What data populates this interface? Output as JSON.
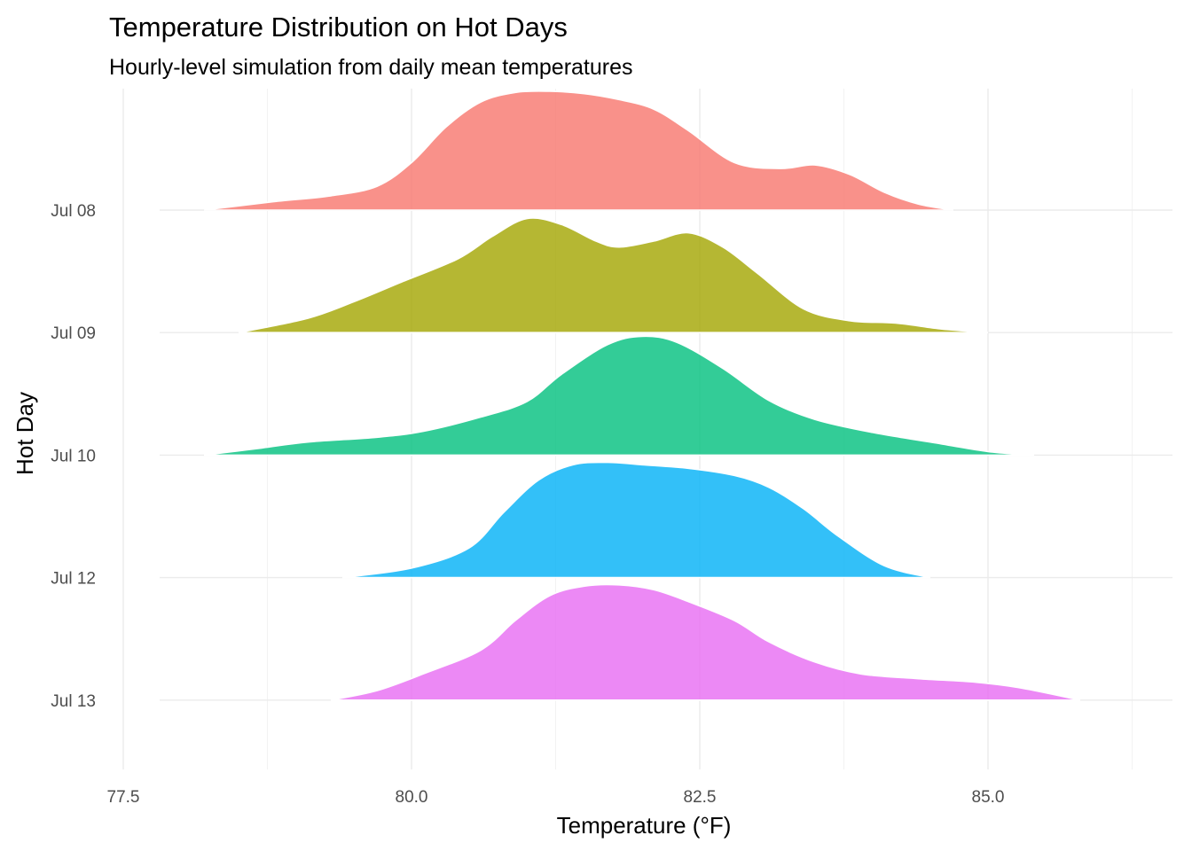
{
  "chart_data": {
    "type": "ridgeline",
    "title": "Temperature Distribution on Hot Days",
    "subtitle": "Hourly-level simulation from daily mean temperatures",
    "xlabel": "Temperature (°F)",
    "ylabel": "Hot Day",
    "xlim": [
      77.4,
      86.3
    ],
    "x_ticks": [
      77.5,
      80.0,
      82.5,
      85.0
    ],
    "x_tick_labels": [
      "77.5",
      "80.0",
      "82.5",
      "85.0"
    ],
    "grid": true,
    "legend": "none",
    "categories": [
      "Jul 08",
      "Jul 09",
      "Jul 10",
      "Jul 12",
      "Jul 13"
    ],
    "series": [
      {
        "name": "Jul 08",
        "color": "#F8766D",
        "range": [
          78.2,
          84.7
        ],
        "points": [
          [
            78.2,
            0.0
          ],
          [
            78.8,
            0.07
          ],
          [
            79.3,
            0.12
          ],
          [
            79.7,
            0.2
          ],
          [
            80.0,
            0.4
          ],
          [
            80.3,
            0.7
          ],
          [
            80.6,
            0.91
          ],
          [
            80.9,
            0.99
          ],
          [
            81.2,
            1.0
          ],
          [
            81.5,
            0.98
          ],
          [
            81.8,
            0.93
          ],
          [
            82.1,
            0.85
          ],
          [
            82.4,
            0.67
          ],
          [
            82.8,
            0.4
          ],
          [
            83.2,
            0.35
          ],
          [
            83.5,
            0.38
          ],
          [
            83.8,
            0.3
          ],
          [
            84.1,
            0.15
          ],
          [
            84.4,
            0.05
          ],
          [
            84.7,
            0.0
          ]
        ]
      },
      {
        "name": "Jul 09",
        "color": "#A3A500",
        "range": [
          78.5,
          85.0
        ],
        "points": [
          [
            78.5,
            0.0
          ],
          [
            79.1,
            0.12
          ],
          [
            79.5,
            0.26
          ],
          [
            79.9,
            0.42
          ],
          [
            80.4,
            0.62
          ],
          [
            80.7,
            0.81
          ],
          [
            81.0,
            0.96
          ],
          [
            81.3,
            0.91
          ],
          [
            81.6,
            0.77
          ],
          [
            81.8,
            0.72
          ],
          [
            82.1,
            0.77
          ],
          [
            82.4,
            0.84
          ],
          [
            82.7,
            0.72
          ],
          [
            83.0,
            0.5
          ],
          [
            83.4,
            0.2
          ],
          [
            83.8,
            0.1
          ],
          [
            84.2,
            0.08
          ],
          [
            84.6,
            0.03
          ],
          [
            85.0,
            0.0
          ]
        ]
      },
      {
        "name": "Jul 10",
        "color": "#00BF7D",
        "range": [
          78.2,
          85.4
        ],
        "points": [
          [
            78.2,
            0.0
          ],
          [
            78.7,
            0.06
          ],
          [
            79.1,
            0.11
          ],
          [
            79.7,
            0.15
          ],
          [
            80.1,
            0.2
          ],
          [
            80.6,
            0.32
          ],
          [
            81.0,
            0.45
          ],
          [
            81.3,
            0.68
          ],
          [
            81.7,
            0.93
          ],
          [
            82.0,
            1.0
          ],
          [
            82.3,
            0.95
          ],
          [
            82.7,
            0.73
          ],
          [
            83.1,
            0.46
          ],
          [
            83.5,
            0.3
          ],
          [
            84.0,
            0.19
          ],
          [
            84.5,
            0.11
          ],
          [
            85.0,
            0.03
          ],
          [
            85.4,
            0.0
          ]
        ]
      },
      {
        "name": "Jul 12",
        "color": "#00B0F6",
        "range": [
          79.4,
          84.5
        ],
        "points": [
          [
            79.4,
            0.0
          ],
          [
            80.0,
            0.08
          ],
          [
            80.5,
            0.25
          ],
          [
            80.8,
            0.55
          ],
          [
            81.1,
            0.82
          ],
          [
            81.4,
            0.95
          ],
          [
            81.7,
            0.97
          ],
          [
            82.0,
            0.95
          ],
          [
            82.4,
            0.92
          ],
          [
            82.8,
            0.86
          ],
          [
            83.1,
            0.76
          ],
          [
            83.4,
            0.58
          ],
          [
            83.7,
            0.35
          ],
          [
            84.1,
            0.1
          ],
          [
            84.5,
            0.0
          ]
        ]
      },
      {
        "name": "Jul 13",
        "color": "#E76BF3",
        "range": [
          79.3,
          85.8
        ],
        "points": [
          [
            79.3,
            0.0
          ],
          [
            79.7,
            0.08
          ],
          [
            80.1,
            0.22
          ],
          [
            80.6,
            0.42
          ],
          [
            80.9,
            0.67
          ],
          [
            81.2,
            0.88
          ],
          [
            81.5,
            0.96
          ],
          [
            81.8,
            0.97
          ],
          [
            82.1,
            0.93
          ],
          [
            82.4,
            0.83
          ],
          [
            82.8,
            0.67
          ],
          [
            83.1,
            0.49
          ],
          [
            83.5,
            0.32
          ],
          [
            83.9,
            0.22
          ],
          [
            84.4,
            0.18
          ],
          [
            84.9,
            0.15
          ],
          [
            85.3,
            0.1
          ],
          [
            85.8,
            0.0
          ]
        ]
      }
    ]
  }
}
